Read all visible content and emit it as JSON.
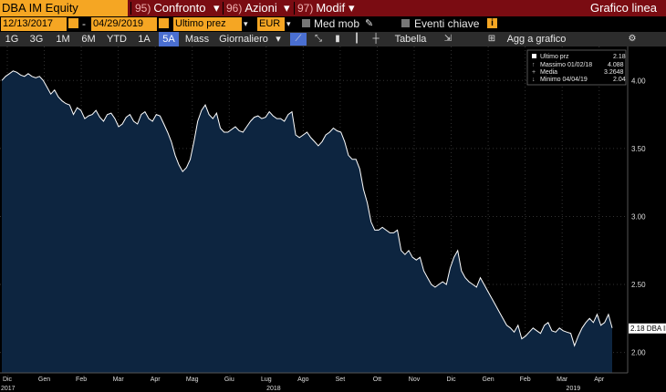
{
  "header": {
    "ticker": "DBA IM Equity",
    "buttons": [
      {
        "num": "95)",
        "label": "Confronto"
      },
      {
        "num": "96)",
        "label": "Azioni"
      },
      {
        "num": "97)",
        "label": "Modif"
      }
    ],
    "title": "Grafico linea"
  },
  "controls": {
    "date_from": "12/13/2017",
    "dash": "-",
    "date_to": "04/29/2019",
    "price_field": "Ultimo prez",
    "currency": "EUR",
    "moving_avg_label": "Med mob",
    "events_label": "Eventi chiave"
  },
  "toolbar": {
    "periods": [
      "1G",
      "3G",
      "1M",
      "6M",
      "YTD",
      "1A",
      "5A",
      "Mass"
    ],
    "active_period": "5A",
    "frequency": "Giornaliero",
    "table_label": "Tabella",
    "add_label": "Agg a grafico"
  },
  "legend": [
    {
      "label": "Ultimo prz",
      "value": "2.18"
    },
    {
      "label": "Massimo 01/02/18",
      "value": "4.088"
    },
    {
      "label": "Media",
      "value": "3.2648"
    },
    {
      "label": "Minimo 04/04/19",
      "value": "2.04"
    }
  ],
  "colors": {
    "accent": "#f5a623",
    "header_bg": "#7a0c12",
    "fill": "#0d2540",
    "line": "#ffffff",
    "active": "#4a6fd1"
  },
  "chart_data": {
    "type": "area",
    "ylim": [
      1.85,
      4.25
    ],
    "yticks": [
      "2.00",
      "2.50",
      "3.00",
      "3.50",
      "4.00"
    ],
    "last_label": "2.18 DBA IM",
    "x_month_labels": [
      "Dic",
      "Gen",
      "Feb",
      "Mar",
      "Apr",
      "Mag",
      "Giu",
      "Lug",
      "Ago",
      "Set",
      "Ott",
      "Nov",
      "Dic",
      "Gen",
      "Feb",
      "Mar",
      "Apr"
    ],
    "x_year_labels": [
      "2017",
      "2018",
      "2019"
    ],
    "series": [
      {
        "values": [
          4.0,
          4.03,
          4.05,
          4.07,
          4.06,
          4.04,
          4.03,
          4.05,
          4.03,
          4.02,
          4.03,
          4.0,
          3.95,
          3.9,
          3.93,
          3.88,
          3.85,
          3.83,
          3.82,
          3.75,
          3.8,
          3.78,
          3.72,
          3.74,
          3.75,
          3.78,
          3.73,
          3.7,
          3.75,
          3.76,
          3.72,
          3.66,
          3.68,
          3.73,
          3.75,
          3.7,
          3.68,
          3.75,
          3.77,
          3.72,
          3.7,
          3.75,
          3.74,
          3.68,
          3.62,
          3.55,
          3.45,
          3.38,
          3.33,
          3.36,
          3.42,
          3.55,
          3.7,
          3.78,
          3.82,
          3.75,
          3.72,
          3.76,
          3.65,
          3.62,
          3.62,
          3.64,
          3.66,
          3.63,
          3.62,
          3.66,
          3.7,
          3.73,
          3.74,
          3.72,
          3.73,
          3.77,
          3.74,
          3.72,
          3.72,
          3.7,
          3.75,
          3.77,
          3.6,
          3.58,
          3.6,
          3.62,
          3.58,
          3.55,
          3.52,
          3.55,
          3.6,
          3.62,
          3.65,
          3.63,
          3.62,
          3.55,
          3.45,
          3.42,
          3.42,
          3.35,
          3.2,
          3.1,
          2.96,
          2.9,
          2.9,
          2.92,
          2.9,
          2.88,
          2.88,
          2.9,
          2.75,
          2.72,
          2.75,
          2.7,
          2.68,
          2.7,
          2.6,
          2.55,
          2.5,
          2.48,
          2.5,
          2.52,
          2.5,
          2.62,
          2.7,
          2.75,
          2.6,
          2.55,
          2.52,
          2.5,
          2.48,
          2.55,
          2.5,
          2.45,
          2.4,
          2.35,
          2.3,
          2.25,
          2.2,
          2.18,
          2.15,
          2.2,
          2.1,
          2.12,
          2.15,
          2.18,
          2.16,
          2.14,
          2.2,
          2.22,
          2.16,
          2.15,
          2.18,
          2.16,
          2.15,
          2.14,
          2.05,
          2.12,
          2.18,
          2.22,
          2.25,
          2.22,
          2.28,
          2.2,
          2.22,
          2.28,
          2.18
        ]
      }
    ]
  }
}
